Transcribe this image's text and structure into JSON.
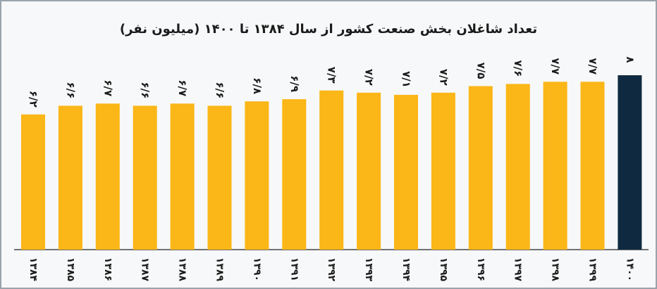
{
  "chart_data": {
    "type": "bar",
    "title": "تعداد شاغلان بخش صنعت کشور از سال ۱۳۸۴ تا ۱۴۰۰ (میلیون نفر)",
    "categories": [
      "۱۳۸۴",
      "۱۳۸۵",
      "۱۳۸۶",
      "۱۳۸۷",
      "۱۳۸۸",
      "۱۳۸۹",
      "۱۳۹۰",
      "۱۳۹۱",
      "۱۳۹۲",
      "۱۳۹۳",
      "۱۳۹۴",
      "۱۳۹۵",
      "۱۳۹۶",
      "۱۳۹۷",
      "۱۳۹۸",
      "۱۳۹۹",
      "۱۴۰۰"
    ],
    "values": [
      6.2,
      6.6,
      6.7,
      6.6,
      6.7,
      6.6,
      6.8,
      6.9,
      7.3,
      7.2,
      7.1,
      7.2,
      7.5,
      7.6,
      7.7,
      7.7,
      8
    ],
    "value_labels": [
      "۶/۲",
      "۶/۶",
      "۶/۷",
      "۶/۶",
      "۶/۷",
      "۶/۶",
      "۶/۸",
      "۶/۹",
      "۷/۳",
      "۷/۲",
      "۷/۱",
      "۷/۲",
      "۷/۵",
      "۷/۶",
      "۷/۷",
      "۷/۷",
      "۸"
    ],
    "colors": [
      "#fbb617",
      "#fbb617",
      "#fbb617",
      "#fbb617",
      "#fbb617",
      "#fbb617",
      "#fbb617",
      "#fbb617",
      "#fbb617",
      "#fbb617",
      "#fbb617",
      "#fbb617",
      "#fbb617",
      "#fbb617",
      "#fbb617",
      "#fbb617",
      "#0f2a40"
    ]
  }
}
